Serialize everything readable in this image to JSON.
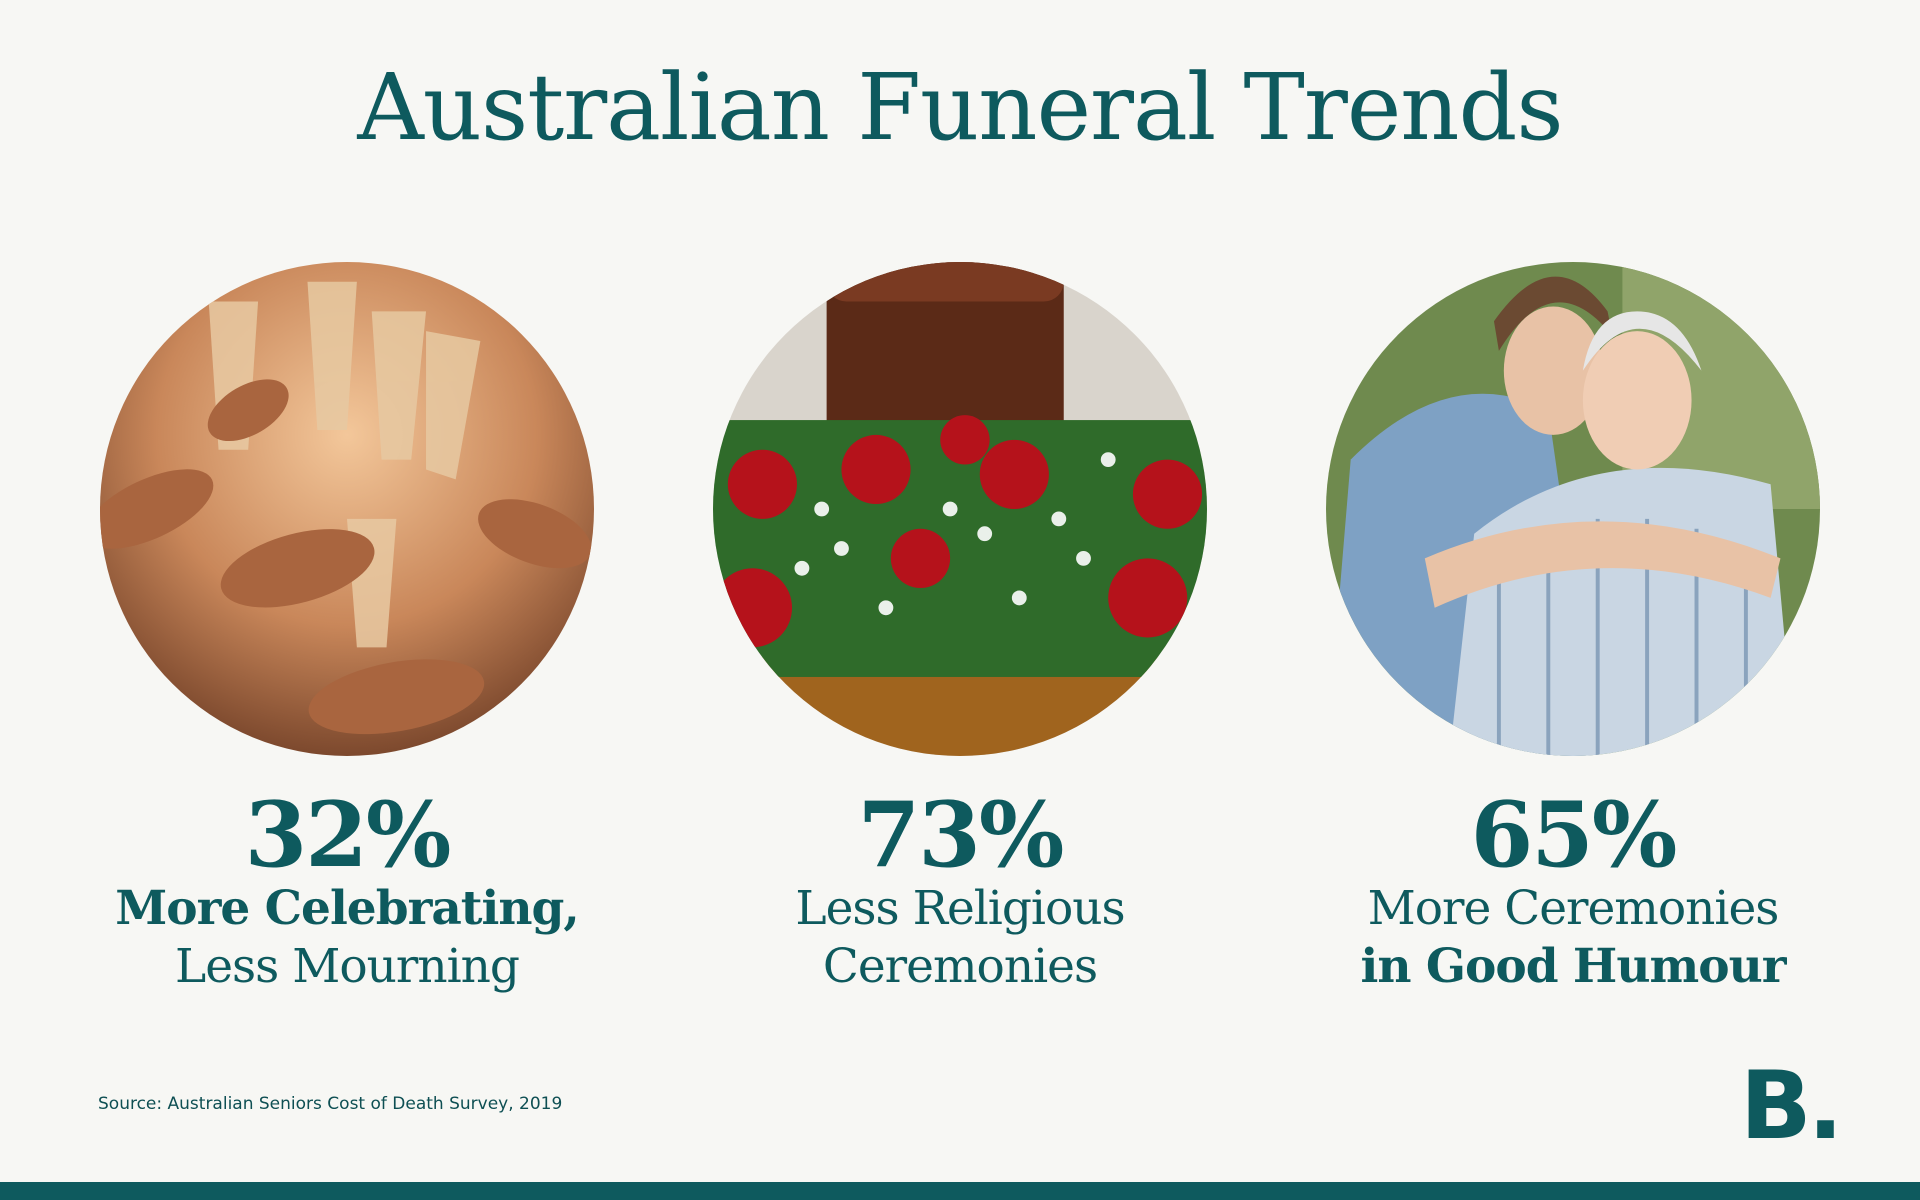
{
  "title": "Australian Funeral Trends",
  "stats": [
    {
      "percent": "32%",
      "line1": "More Celebrating,",
      "line2": "Less Mourning",
      "image_icon": "champagne-toast-photo"
    },
    {
      "percent": "73%",
      "line1": "Less Religious",
      "line2": "Ceremonies",
      "image_icon": "urn-with-roses-photo"
    },
    {
      "percent": "65%",
      "line1": "More Ceremonies",
      "line2": "in Good Humour",
      "image_icon": "daughter-hugging-mother-photo"
    }
  ],
  "source": "Source: Australian Seniors Cost of Death Survey, 2019",
  "logo": "B.",
  "colors": {
    "brand": "#0e5a5e",
    "background": "#f7f7f4"
  }
}
